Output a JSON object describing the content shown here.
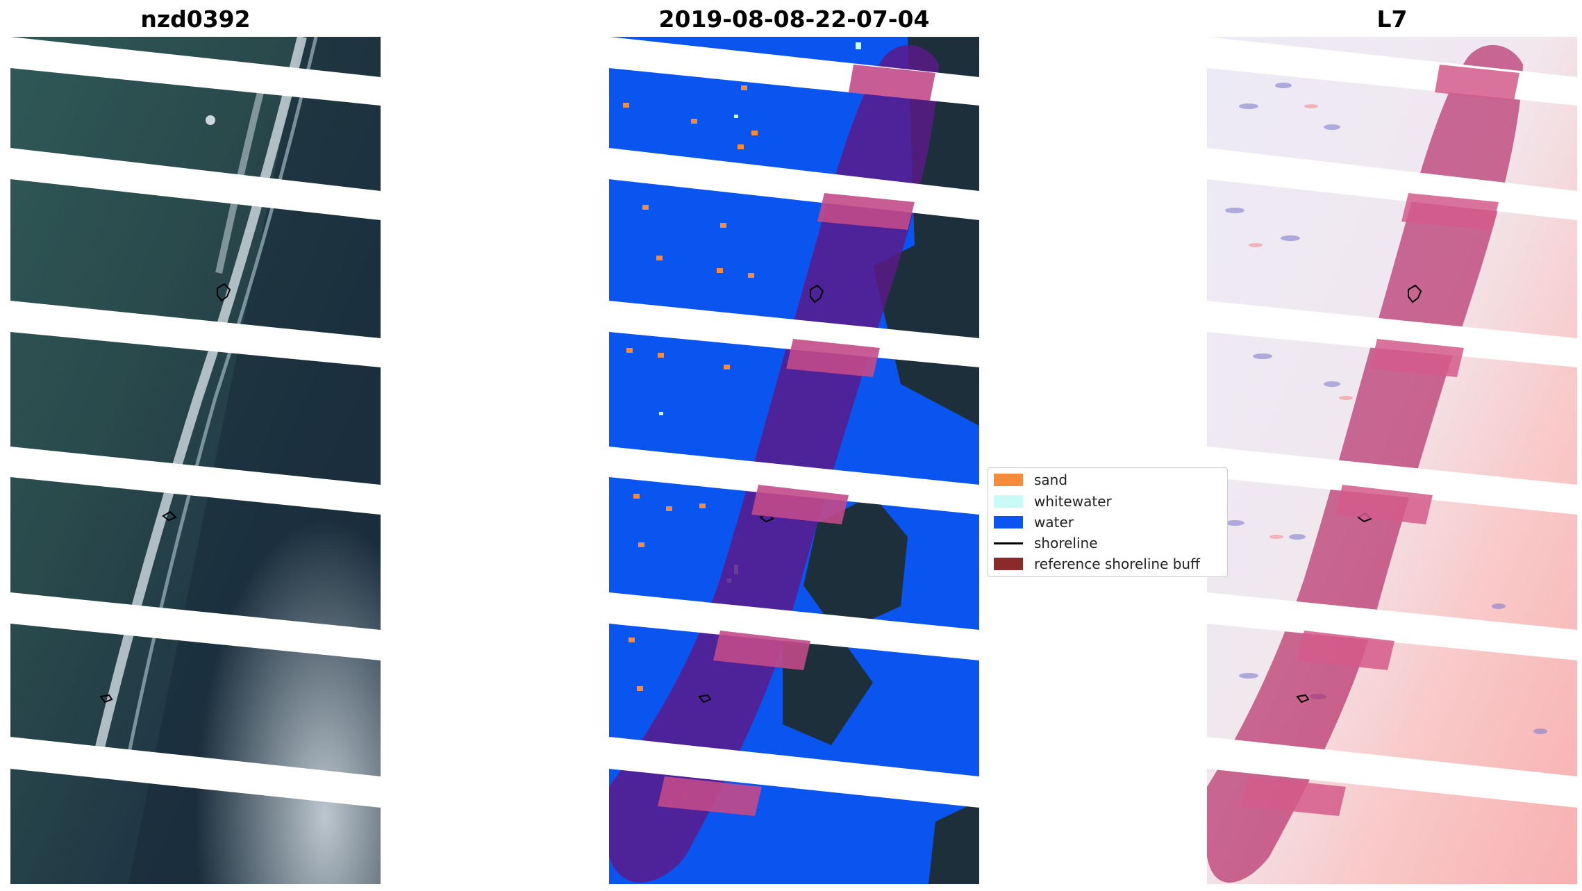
{
  "panels": {
    "left": {
      "title": "nzd0392"
    },
    "middle": {
      "title": "2019-08-08-22-07-04"
    },
    "right": {
      "title": "L7"
    }
  },
  "legend": {
    "items": [
      {
        "label": "sand",
        "color": "#f58b3c",
        "kind": "patch"
      },
      {
        "label": "whitewater",
        "color": "#c8fbf8",
        "kind": "patch"
      },
      {
        "label": "water",
        "color": "#0a55f0",
        "kind": "patch"
      },
      {
        "label": "shoreline",
        "color": "#000000",
        "kind": "line"
      },
      {
        "label": "reference shoreline buff",
        "color": "#8b2a2a",
        "kind": "patch"
      }
    ]
  },
  "colors": {
    "ocean_dark": "#1c3540",
    "ocean_teal": "#2e5555",
    "surf_white": "#dde8ee",
    "classified_water": "#0a55f0",
    "buffer_purple": "#5a1a8a",
    "buffer_pink": "#c24a8a",
    "index_blue": "#e6e6fa",
    "index_red": "#f8b0b0"
  }
}
